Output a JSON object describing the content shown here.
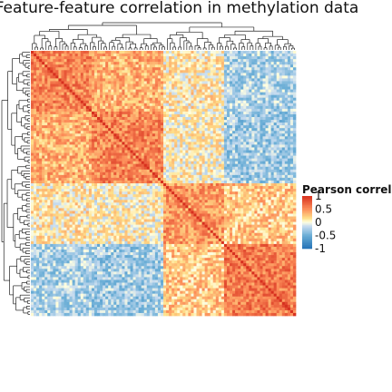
{
  "chart_data": {
    "type": "heatmap",
    "title": "Feature-feature correlation in methylation data",
    "n_features": 96,
    "value_range": [
      -1,
      1
    ],
    "block_pattern": {
      "description_free": false,
      "block_boundaries": [
        0,
        22,
        48,
        70,
        96
      ],
      "block_mean_correlation": [
        [
          0.55,
          0.35,
          0.1,
          -0.25
        ],
        [
          0.35,
          0.55,
          0.05,
          -0.3
        ],
        [
          0.1,
          0.05,
          0.45,
          0.25
        ],
        [
          -0.25,
          -0.3,
          0.25,
          0.6
        ]
      ],
      "diagonal": 1
    },
    "colors": {
      "strong_positive": "#d7301f",
      "positive": "#fc8d59",
      "weak_positive": "#fee08b",
      "zero": "#ffffbf",
      "weak_negative": "#c6dbef",
      "negative": "#6baed6",
      "strong_negative": "#2171b5"
    },
    "legend": {
      "title": "Pearson correlation",
      "ticks": [
        "1",
        "0.5",
        "0",
        "-0.5",
        "-1"
      ],
      "tick_values": [
        1,
        0.5,
        0,
        -0.5,
        -1
      ],
      "placement": "right"
    }
  }
}
